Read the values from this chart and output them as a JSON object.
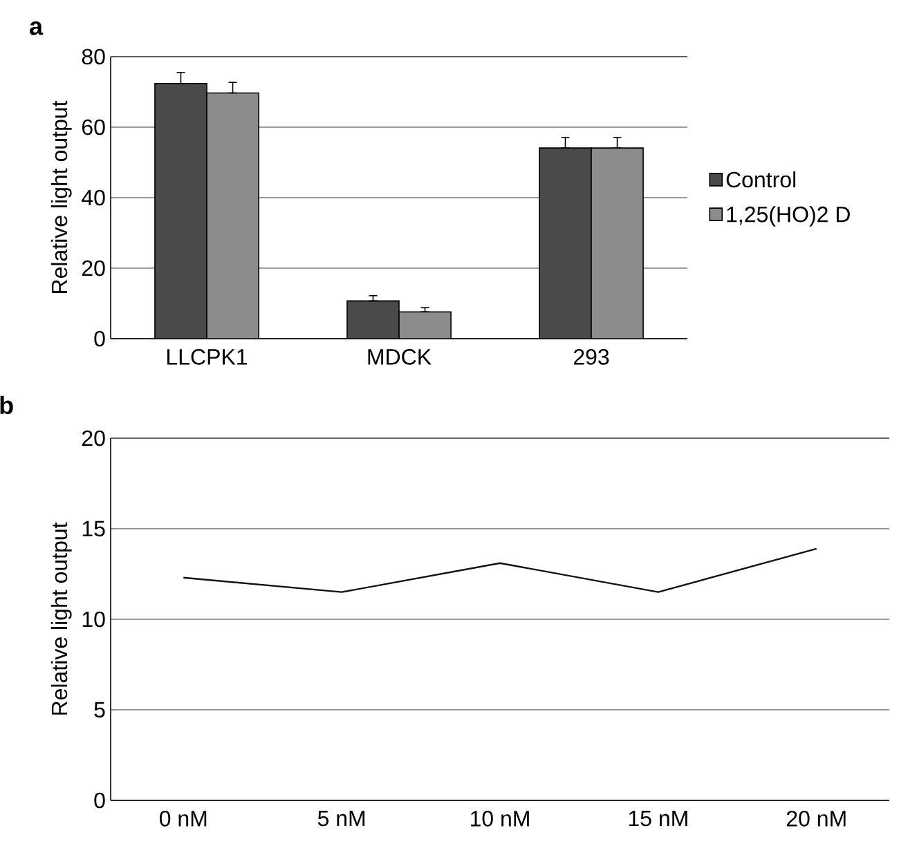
{
  "chart_data": [
    {
      "type": "bar",
      "title": "a",
      "ylabel": "Relative light output",
      "categories": [
        "LLCPK1",
        "MDCK",
        "293"
      ],
      "series": [
        {
          "name": "Control",
          "color": "#4a4a4a",
          "values": [
            72.4,
            10.7,
            54.1
          ],
          "errors": [
            [
              72.4,
              75.5
            ],
            [
              10.7,
              12.2
            ],
            [
              54.1,
              57.1
            ]
          ]
        },
        {
          "name": "1,25(HO)2 D",
          "color": "#8c8c8c",
          "values": [
            69.7,
            7.6,
            54.1
          ],
          "errors": [
            [
              69.7,
              72.7
            ],
            [
              7.6,
              8.8
            ],
            [
              54.1,
              57.1
            ]
          ]
        }
      ],
      "ylim": [
        0,
        80
      ],
      "yticks": [
        0,
        20,
        40,
        60,
        80
      ],
      "grid": "y",
      "legend": "right"
    },
    {
      "type": "line",
      "title": "b",
      "ylabel": "Relative light output",
      "categories": [
        "0 nM",
        "5 nM",
        "10 nM",
        "15 nM",
        "20 nM"
      ],
      "series": [
        {
          "color": "#111111",
          "values": [
            12.3,
            11.5,
            13.1,
            11.5,
            13.9
          ]
        }
      ],
      "ylim": [
        0,
        20
      ],
      "yticks": [
        0,
        5,
        10,
        15,
        20
      ],
      "grid": "y"
    }
  ]
}
